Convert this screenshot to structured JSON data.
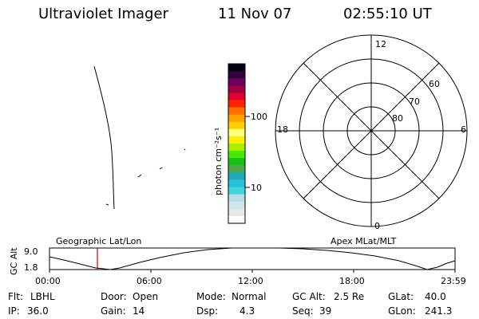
{
  "header": {
    "instrument": "Ultraviolet Imager",
    "date": "11 Nov 07",
    "time": "02:55:10 UT"
  },
  "colorbar": {
    "unit_label": "photon cm⁻²s⁻¹",
    "tick_labels": [
      "100",
      "10"
    ],
    "colors": [
      "#ffffff",
      "#e8e8e8",
      "#d0e6ee",
      "#b8dce8",
      "#3fd3e0",
      "#26c0d8",
      "#1ea9b8",
      "#4ea84e",
      "#16c016",
      "#4ae800",
      "#a8f000",
      "#fff000",
      "#ffff80",
      "#ffd000",
      "#ffa000",
      "#ff7000",
      "#ff2000",
      "#e00030",
      "#a00040",
      "#700060",
      "#300040",
      "#000010"
    ]
  },
  "polar_plot": {
    "mlt_labels": {
      "top": "12",
      "left": "18",
      "right": "6",
      "bottom": "0"
    },
    "mlat_labels": [
      "60",
      "70",
      "80"
    ]
  },
  "altitude_panel": {
    "axis_label": "GC Alt",
    "y_max_label": "9.0",
    "y_min_label": "1.8",
    "left_caption": "Geographic Lat/Lon",
    "right_caption": "Apex MLat/MLT",
    "x_tick_labels": [
      "00:00",
      "06:00",
      "12:00",
      "18:00",
      "23:59"
    ],
    "current_time_marker_color": "#cc0000"
  },
  "info_rows": [
    [
      {
        "key": "Flt:",
        "value": "LBHL"
      },
      {
        "key": "Door:",
        "value": "Open"
      },
      {
        "key": "Mode:",
        "value": "Normal"
      },
      {
        "key": "GC Alt:",
        "value": "2.5 Re"
      },
      {
        "key": "GLat:",
        "value": "40.0"
      }
    ],
    [
      {
        "key": "IP:",
        "value": "36.0"
      },
      {
        "key": "Gain:",
        "value": "14"
      },
      {
        "key": "Dsp:",
        "value": "4.3"
      },
      {
        "key": "Seq:",
        "value": "39"
      },
      {
        "key": "GLon:",
        "value": "241.3"
      }
    ]
  ]
}
